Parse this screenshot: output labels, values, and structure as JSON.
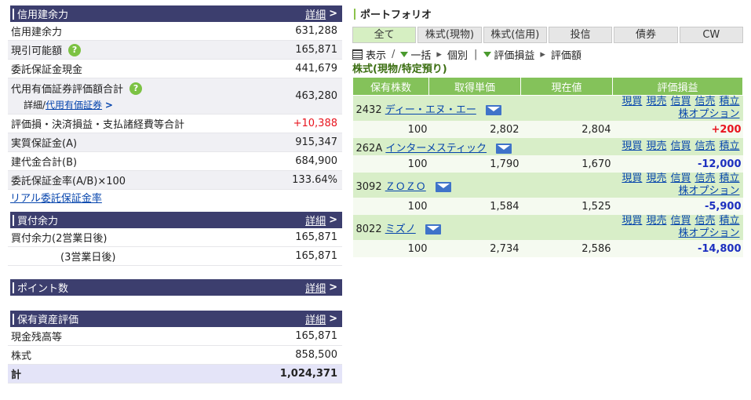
{
  "credit": {
    "title": "信用建余力",
    "detail": "詳細",
    "rows": [
      {
        "label": "信用建余力",
        "value": "631,288"
      },
      {
        "label": "現引可能額",
        "value": "165,871"
      },
      {
        "label": "委託保証金現金",
        "value": "441,679"
      },
      {
        "label": "代用有価証券評価額合計",
        "value": "463,280",
        "sub_prefix": "詳細/",
        "sub_link": "代用有価証券"
      },
      {
        "label": "評価損・決済損益・支払諸経費等合計",
        "value": "+10,388"
      },
      {
        "label": "実質保証金(A)",
        "value": "915,347"
      },
      {
        "label": "建代金合計(B)",
        "value": "684,900"
      },
      {
        "label": "委託保証金率(A/B)×100",
        "value": "133.64%"
      }
    ],
    "link": "リアル委託保証金率"
  },
  "purchase": {
    "title": "買付余力",
    "detail": "詳細",
    "rows": [
      {
        "label": "買付余力(2営業日後)",
        "value": "165,871"
      },
      {
        "label": "(3営業日後)",
        "value": "165,871"
      }
    ]
  },
  "points": {
    "title": "ポイント数",
    "detail": "詳細"
  },
  "assets": {
    "title": "保有資産評価",
    "detail": "詳細",
    "rows": [
      {
        "label": "現金残高等",
        "value": "165,871"
      },
      {
        "label": "株式",
        "value": "858,500"
      },
      {
        "label": "計",
        "value": "1,024,371"
      }
    ]
  },
  "portfolio": {
    "title": "ポートフォリオ",
    "tabs": [
      "全て",
      "株式(現物)",
      "株式(信用)",
      "投信",
      "債券",
      "CW"
    ],
    "toolbar": {
      "show": "表示",
      "batch": "一括",
      "individual": "個別",
      "pl": "評価損益",
      "val": "評価額"
    },
    "subtitle": "株式(現物/特定預り)",
    "headers": [
      "保有株数",
      "取得単価",
      "現在値",
      "評価損益"
    ],
    "action_links": [
      "現買",
      "現売",
      "信買",
      "信売",
      "積立"
    ],
    "option_link": "株オプション",
    "stocks": [
      {
        "code": "2432",
        "name": "ディー・エヌ・エー",
        "qty": "100",
        "cost": "2,802",
        "price": "2,804",
        "pl": "+200",
        "opt": true
      },
      {
        "code": "262A",
        "name": "インターメスティック",
        "qty": "100",
        "cost": "1,790",
        "price": "1,670",
        "pl": "-12,000",
        "opt": false
      },
      {
        "code": "3092",
        "name": "ＺＯＺＯ",
        "qty": "100",
        "cost": "1,584",
        "price": "1,525",
        "pl": "-5,900",
        "opt": true
      },
      {
        "code": "8022",
        "name": "ミズノ",
        "qty": "100",
        "cost": "2,734",
        "price": "2,586",
        "pl": "-14,800",
        "opt": true
      }
    ]
  }
}
